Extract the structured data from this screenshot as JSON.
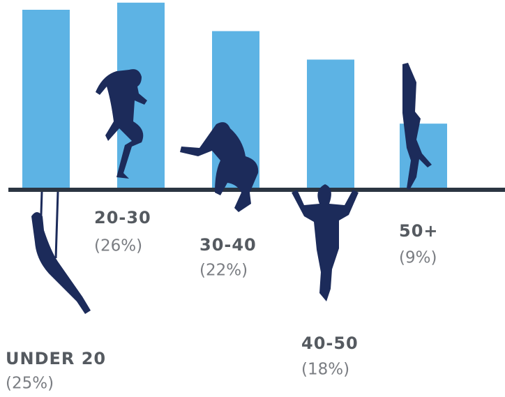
{
  "chart_data": {
    "type": "bar",
    "categories": [
      "UNDER 20",
      "20-30",
      "30-40",
      "40-50",
      "50+"
    ],
    "values": [
      25,
      26,
      22,
      18,
      9
    ],
    "value_labels": [
      "(25%)",
      "(26%)",
      "(22%)",
      "(18%)",
      "(9%)"
    ],
    "color": "#5db3e4"
  }
}
